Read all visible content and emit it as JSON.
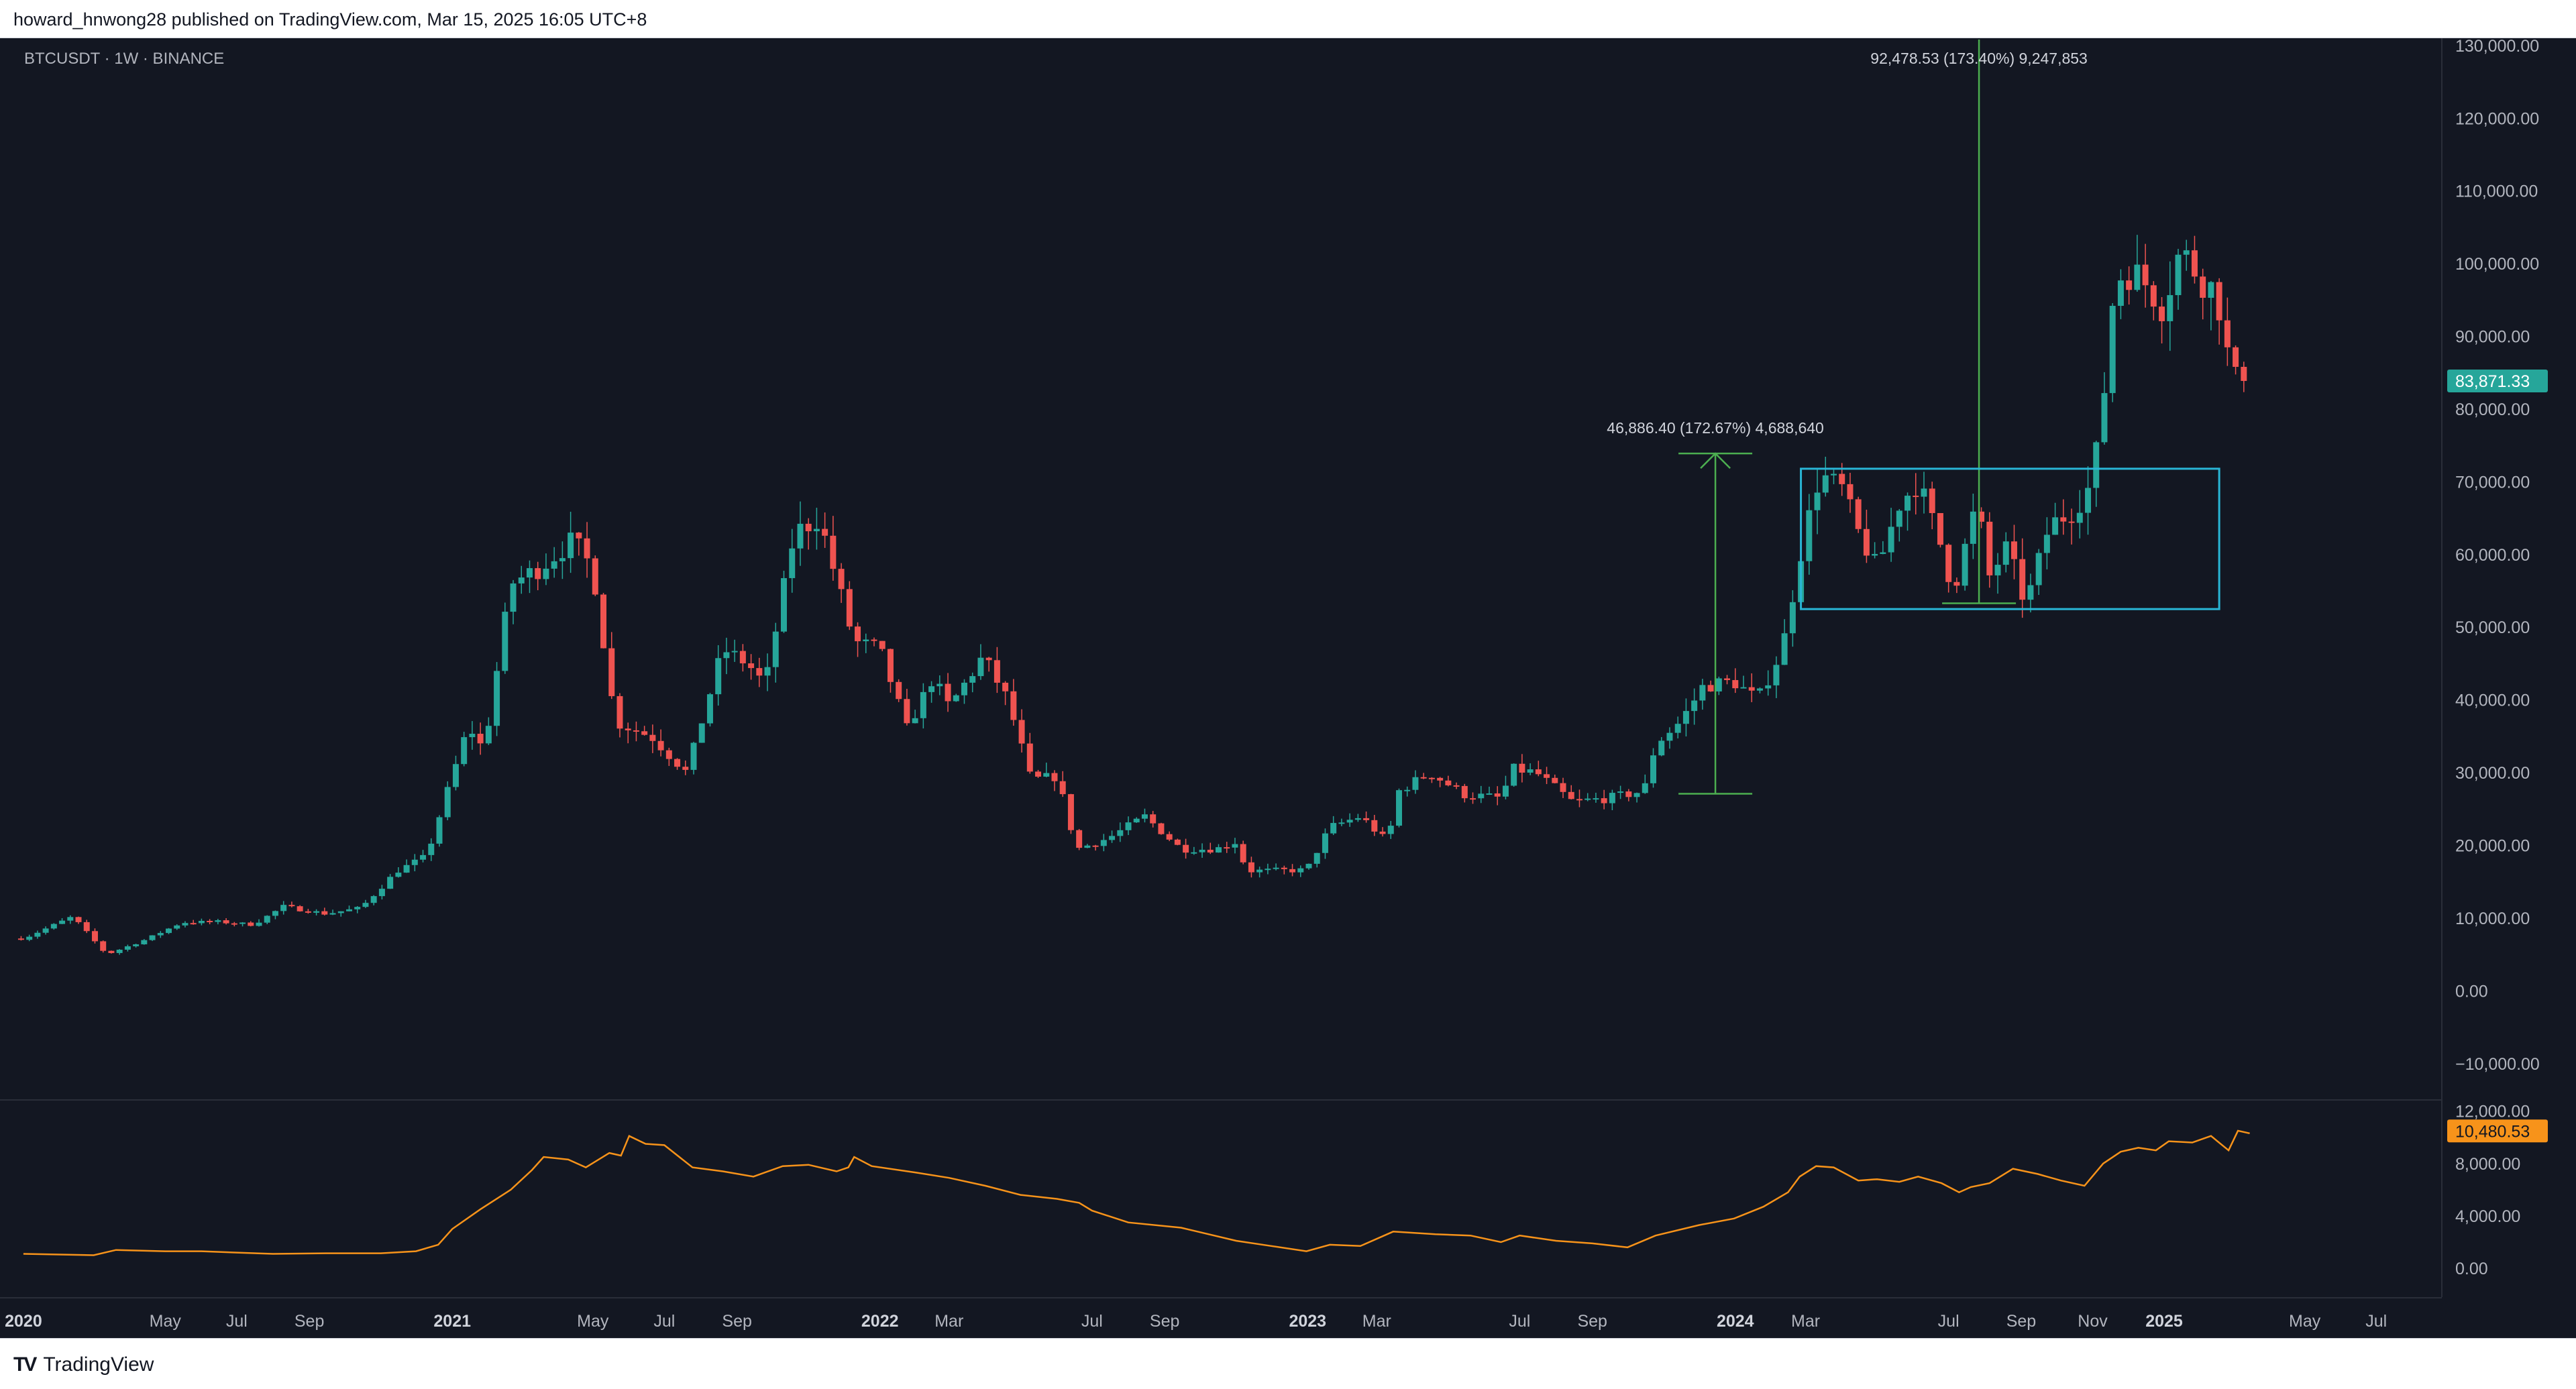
{
  "header": {
    "published_by": "howard_hnwong28 published on TradingView.com, Mar 15, 2025 16:05 UTC+8"
  },
  "footer": {
    "logo_text": "TradingView",
    "logo_icon": "tradingview-logo-icon"
  },
  "symbol_label": "BTCUSDT · 1W · BINANCE",
  "colors": {
    "background": "#131722",
    "up": "#26a69a",
    "down": "#ef5350",
    "indicator_line": "#f7931a",
    "price_badge": "#26a69a",
    "indicator_badge": "#f7931a",
    "range_box": "#29b6d6",
    "measure": "#4caf50",
    "grid": "#1e222d"
  },
  "chart_data": [
    {
      "type": "candlestick",
      "title": "BTCUSDT · 1W · BINANCE",
      "interval": "weekly",
      "x_start": "2020-01-01",
      "ylim": [
        -15000,
        131000
      ],
      "y_ticks": [
        -10000,
        0,
        10000,
        20000,
        30000,
        40000,
        50000,
        60000,
        70000,
        80000,
        90000,
        100000,
        110000,
        120000,
        130000
      ],
      "y_tick_labels": [
        "−10,000.00",
        "0.00",
        "10,000.00",
        "20,000.00",
        "30,000.00",
        "40,000.00",
        "50,000.00",
        "60,000.00",
        "70,000.00",
        "80,000.00",
        "90,000.00",
        "100,000.00",
        "110,000.00",
        "120,000.00",
        "130,000.00"
      ],
      "last_price_label": "83,871.33",
      "close_anchors": [
        [
          "2020-01-01",
          7200
        ],
        [
          "2020-02-12",
          10200
        ],
        [
          "2020-03-12",
          5000
        ],
        [
          "2020-04-15",
          7100
        ],
        [
          "2020-05-15",
          9400
        ],
        [
          "2020-06-15",
          9500
        ],
        [
          "2020-07-15",
          9100
        ],
        [
          "2020-08-10",
          11600
        ],
        [
          "2020-09-15",
          10600
        ],
        [
          "2020-10-15",
          11400
        ],
        [
          "2020-11-15",
          16500
        ],
        [
          "2020-12-10",
          18500
        ],
        [
          "2020-12-31",
          29000
        ],
        [
          "2021-01-15",
          36500
        ],
        [
          "2021-01-28",
          33000
        ],
        [
          "2021-02-20",
          56000
        ],
        [
          "2021-03-15",
          58000
        ],
        [
          "2021-04-14",
          62000
        ],
        [
          "2021-05-01",
          58000
        ],
        [
          "2021-05-20",
          37000
        ],
        [
          "2021-06-20",
          35000
        ],
        [
          "2021-07-20",
          30000
        ],
        [
          "2021-08-20",
          47000
        ],
        [
          "2021-09-10",
          45000
        ],
        [
          "2021-09-25",
          42000
        ],
        [
          "2021-10-20",
          63000
        ],
        [
          "2021-11-10",
          65000
        ],
        [
          "2021-12-10",
          48000
        ],
        [
          "2022-01-01",
          47000
        ],
        [
          "2022-01-24",
          36000
        ],
        [
          "2022-02-15",
          43000
        ],
        [
          "2022-03-01",
          39000
        ],
        [
          "2022-03-30",
          46000
        ],
        [
          "2022-04-20",
          40000
        ],
        [
          "2022-05-10",
          29000
        ],
        [
          "2022-06-01",
          29500
        ],
        [
          "2022-06-18",
          19500
        ],
        [
          "2022-07-15",
          21000
        ],
        [
          "2022-08-15",
          24000
        ],
        [
          "2022-09-15",
          19500
        ],
        [
          "2022-10-15",
          19500
        ],
        [
          "2022-11-01",
          20500
        ],
        [
          "2022-11-10",
          16500
        ],
        [
          "2022-12-31",
          16600
        ],
        [
          "2023-01-20",
          22500
        ],
        [
          "2023-02-15",
          24000
        ],
        [
          "2023-03-10",
          20500
        ],
        [
          "2023-03-20",
          27500
        ],
        [
          "2023-04-15",
          30000
        ],
        [
          "2023-05-15",
          27000
        ],
        [
          "2023-06-15",
          26500
        ],
        [
          "2023-06-25",
          30500
        ],
        [
          "2023-07-15",
          30000
        ],
        [
          "2023-08-15",
          26000
        ],
        [
          "2023-09-15",
          26500
        ],
        [
          "2023-10-15",
          27500
        ],
        [
          "2023-10-25",
          34000
        ],
        [
          "2023-11-15",
          37000
        ],
        [
          "2023-12-05",
          42000
        ],
        [
          "2023-12-31",
          42500
        ],
        [
          "2024-01-20",
          40000
        ],
        [
          "2024-02-10",
          47000
        ],
        [
          "2024-02-28",
          62000
        ],
        [
          "2024-03-13",
          71000
        ],
        [
          "2024-04-01",
          69000
        ],
        [
          "2024-04-15",
          63000
        ],
        [
          "2024-05-01",
          58000
        ],
        [
          "2024-05-20",
          67000
        ],
        [
          "2024-06-05",
          70000
        ],
        [
          "2024-06-25",
          61000
        ],
        [
          "2024-07-05",
          55000
        ],
        [
          "2024-07-25",
          67000
        ],
        [
          "2024-08-05",
          57000
        ],
        [
          "2024-08-20",
          61000
        ],
        [
          "2024-09-05",
          53000
        ],
        [
          "2024-09-25",
          64000
        ],
        [
          "2024-10-15",
          66000
        ],
        [
          "2024-10-28",
          69000
        ],
        [
          "2024-11-07",
          76000
        ],
        [
          "2024-11-20",
          98000
        ],
        [
          "2024-12-05",
          99000
        ],
        [
          "2024-12-18",
          97000
        ],
        [
          "2024-12-31",
          94000
        ],
        [
          "2025-01-15",
          102000
        ],
        [
          "2025-02-01",
          98000
        ],
        [
          "2025-02-15",
          96000
        ],
        [
          "2025-02-28",
          84000
        ],
        [
          "2025-03-10",
          83871
        ]
      ],
      "annotations": [
        {
          "kind": "price-range-measure",
          "label": "46,886.40 (172.67%) 4,688,640",
          "date": "2023-12-15",
          "from": 27100,
          "to": 73900
        },
        {
          "kind": "price-range-measure",
          "label": "92,478.53 (173.40%) 9,247,853",
          "date": "2024-07-27",
          "from": 53300,
          "to": 145800
        },
        {
          "kind": "consolidation-box",
          "from_date": "2024-02-26",
          "to_date": "2025-02-17",
          "low": 52500,
          "high": 71800
        }
      ]
    },
    {
      "type": "line",
      "title": "",
      "ylim": [
        -2200,
        12800
      ],
      "y_ticks": [
        0,
        4000,
        8000,
        12000
      ],
      "y_tick_labels": [
        "0.00",
        "4,000.00",
        "8,000.00",
        "12,000.00"
      ],
      "last_value_label": "10,480.53",
      "points": [
        [
          "2020-01-01",
          1100
        ],
        [
          "2020-03-01",
          1000
        ],
        [
          "2020-03-20",
          1400
        ],
        [
          "2020-05-01",
          1300
        ],
        [
          "2020-06-01",
          1300
        ],
        [
          "2020-07-01",
          1200
        ],
        [
          "2020-08-01",
          1100
        ],
        [
          "2020-09-15",
          1150
        ],
        [
          "2020-11-01",
          1150
        ],
        [
          "2020-12-01",
          1300
        ],
        [
          "2020-12-20",
          1800
        ],
        [
          "2021-01-01",
          3000
        ],
        [
          "2021-01-25",
          4500
        ],
        [
          "2021-02-20",
          6000
        ],
        [
          "2021-03-10",
          7500
        ],
        [
          "2021-03-20",
          8500
        ],
        [
          "2021-04-10",
          8300
        ],
        [
          "2021-04-25",
          7700
        ],
        [
          "2021-05-15",
          8800
        ],
        [
          "2021-05-25",
          8600
        ],
        [
          "2021-06-01",
          10100
        ],
        [
          "2021-06-15",
          9500
        ],
        [
          "2021-07-01",
          9400
        ],
        [
          "2021-07-25",
          7700
        ],
        [
          "2021-08-20",
          7400
        ],
        [
          "2021-09-15",
          7000
        ],
        [
          "2021-10-10",
          7800
        ],
        [
          "2021-11-01",
          7900
        ],
        [
          "2021-11-25",
          7400
        ],
        [
          "2021-12-05",
          7700
        ],
        [
          "2021-12-10",
          8500
        ],
        [
          "2021-12-25",
          7800
        ],
        [
          "2022-02-01",
          7300
        ],
        [
          "2022-03-01",
          6900
        ],
        [
          "2022-04-01",
          6300
        ],
        [
          "2022-05-01",
          5600
        ],
        [
          "2022-06-01",
          5300
        ],
        [
          "2022-06-20",
          5000
        ],
        [
          "2022-07-01",
          4400
        ],
        [
          "2022-08-01",
          3500
        ],
        [
          "2022-09-15",
          3100
        ],
        [
          "2022-11-01",
          2100
        ],
        [
          "2022-12-01",
          1700
        ],
        [
          "2022-12-31",
          1300
        ],
        [
          "2023-01-20",
          1800
        ],
        [
          "2023-02-15",
          1700
        ],
        [
          "2023-03-15",
          2800
        ],
        [
          "2023-04-20",
          2600
        ],
        [
          "2023-05-20",
          2500
        ],
        [
          "2023-06-15",
          2000
        ],
        [
          "2023-07-01",
          2500
        ],
        [
          "2023-08-01",
          2100
        ],
        [
          "2023-09-01",
          1900
        ],
        [
          "2023-10-01",
          1600
        ],
        [
          "2023-10-25",
          2500
        ],
        [
          "2023-12-01",
          3300
        ],
        [
          "2023-12-31",
          3800
        ],
        [
          "2024-01-25",
          4700
        ],
        [
          "2024-02-15",
          5800
        ],
        [
          "2024-02-25",
          7000
        ],
        [
          "2024-03-10",
          7800
        ],
        [
          "2024-03-25",
          7700
        ],
        [
          "2024-04-15",
          6700
        ],
        [
          "2024-05-01",
          6800
        ],
        [
          "2024-05-20",
          6600
        ],
        [
          "2024-06-05",
          7000
        ],
        [
          "2024-06-25",
          6500
        ],
        [
          "2024-07-10",
          5800
        ],
        [
          "2024-07-20",
          6200
        ],
        [
          "2024-08-05",
          6500
        ],
        [
          "2024-08-25",
          7600
        ],
        [
          "2024-09-15",
          7200
        ],
        [
          "2024-10-05",
          6700
        ],
        [
          "2024-10-25",
          6300
        ],
        [
          "2024-11-10",
          8000
        ],
        [
          "2024-11-25",
          8900
        ],
        [
          "2024-12-10",
          9200
        ],
        [
          "2024-12-25",
          9000
        ],
        [
          "2025-01-05",
          9700
        ],
        [
          "2025-01-25",
          9600
        ],
        [
          "2025-02-10",
          10100
        ],
        [
          "2025-02-25",
          9000
        ],
        [
          "2025-03-05",
          10500
        ],
        [
          "2025-03-15",
          10300
        ]
      ]
    }
  ],
  "x_axis": [
    {
      "date": "2020-01-01",
      "label": "2020",
      "bold": true
    },
    {
      "date": "2020-05-01",
      "label": "May",
      "bold": false
    },
    {
      "date": "2020-07-01",
      "label": "Jul",
      "bold": false
    },
    {
      "date": "2020-09-01",
      "label": "Sep",
      "bold": false
    },
    {
      "date": "2021-01-01",
      "label": "2021",
      "bold": true
    },
    {
      "date": "2021-05-01",
      "label": "May",
      "bold": false
    },
    {
      "date": "2021-07-01",
      "label": "Jul",
      "bold": false
    },
    {
      "date": "2021-09-01",
      "label": "Sep",
      "bold": false
    },
    {
      "date": "2022-01-01",
      "label": "2022",
      "bold": true
    },
    {
      "date": "2022-03-01",
      "label": "Mar",
      "bold": false
    },
    {
      "date": "2022-07-01",
      "label": "Jul",
      "bold": false
    },
    {
      "date": "2022-09-01",
      "label": "Sep",
      "bold": false
    },
    {
      "date": "2023-01-01",
      "label": "2023",
      "bold": true
    },
    {
      "date": "2023-03-01",
      "label": "Mar",
      "bold": false
    },
    {
      "date": "2023-07-01",
      "label": "Jul",
      "bold": false
    },
    {
      "date": "2023-09-01",
      "label": "Sep",
      "bold": false
    },
    {
      "date": "2024-01-01",
      "label": "2024",
      "bold": true
    },
    {
      "date": "2024-03-01",
      "label": "Mar",
      "bold": false
    },
    {
      "date": "2024-07-01",
      "label": "Jul",
      "bold": false
    },
    {
      "date": "2024-09-01",
      "label": "Sep",
      "bold": false
    },
    {
      "date": "2024-11-01",
      "label": "Nov",
      "bold": false
    },
    {
      "date": "2025-01-01",
      "label": "2025",
      "bold": true
    },
    {
      "date": "2025-05-01",
      "label": "May",
      "bold": false
    },
    {
      "date": "2025-07-01",
      "label": "Jul",
      "bold": false
    }
  ]
}
